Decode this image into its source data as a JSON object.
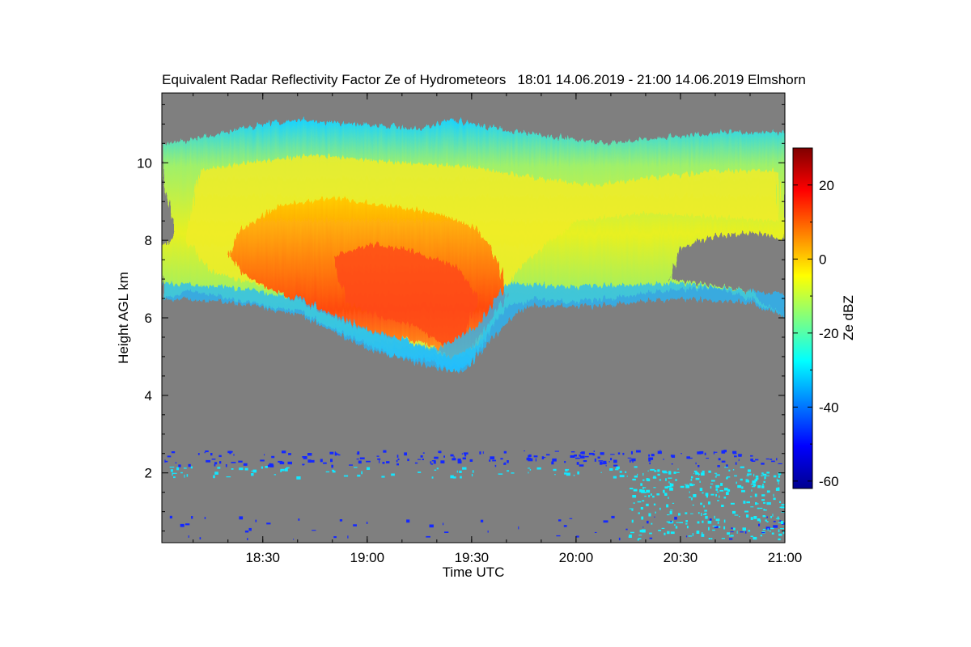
{
  "chart_data": {
    "type": "heatmap",
    "title": "Equivalent Radar Reflectivity Factor Ze of Hydrometeors   18:01 14.06.2019 - 21:00 14.06.2019 Elmshorn",
    "xlabel": "Time UTC",
    "ylabel": "Height AGL km",
    "colorbar_label": "Ze dBZ",
    "x_range_minutes_since_1800": [
      1,
      180
    ],
    "x_tick_minutes": [
      30,
      60,
      90,
      120,
      150,
      180
    ],
    "x_tick_labels": [
      "18:30",
      "19:00",
      "19:30",
      "20:00",
      "20:30",
      "21:00"
    ],
    "ylim": [
      0.2,
      11.8
    ],
    "y_ticks": [
      2,
      4,
      6,
      8,
      10
    ],
    "y_tick_labels": [
      "2",
      "4",
      "6",
      "8",
      "10"
    ],
    "clim": [
      -62,
      30
    ],
    "colorbar_ticks": [
      -60,
      -40,
      -20,
      0,
      20
    ],
    "colorbar_tick_labels": [
      "-60",
      "-40",
      "-20",
      "0",
      "20"
    ],
    "colormap": "jet",
    "background_color": "#7f7f7f",
    "features": [
      {
        "name": "ice-cloud-anvil",
        "time_range": [
          "18:01",
          "21:00"
        ],
        "top_km": [
          10.5,
          11.2
        ],
        "base_km": [
          4.5,
          8.0
        ],
        "ze_range_dBZ": [
          -30,
          -5
        ]
      },
      {
        "name": "core",
        "time_range": [
          "18:35",
          "19:45"
        ],
        "height_km": [
          5.5,
          9.0
        ],
        "ze_max_dBZ": 15
      },
      {
        "name": "low-level-clutter",
        "time_range": [
          "18:01",
          "21:00"
        ],
        "height_km": [
          0.3,
          2.6
        ],
        "ze_range_dBZ": [
          -50,
          -25
        ]
      }
    ]
  }
}
